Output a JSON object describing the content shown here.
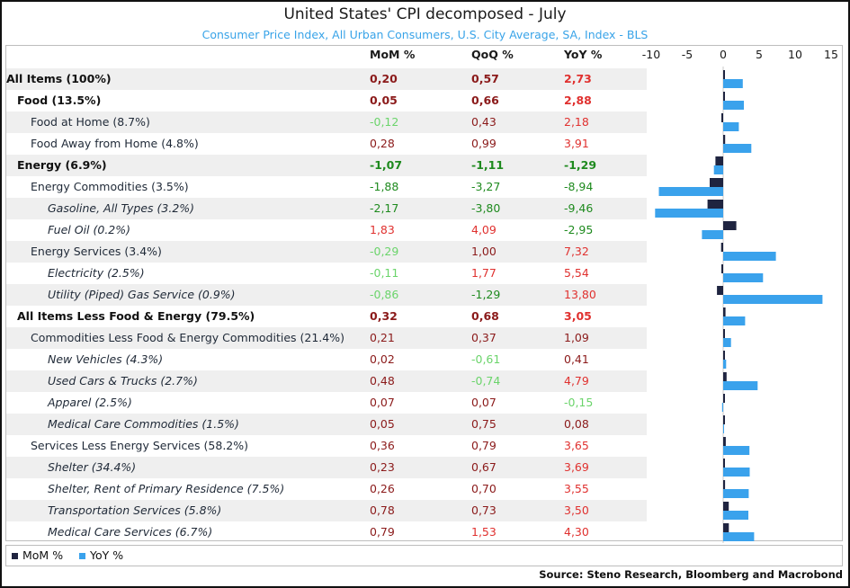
{
  "title": "United States' CPI decomposed - July",
  "subtitle": "Consumer Price Index, All Urban Consumers, U.S. City Average, SA, Index - BLS",
  "columns": {
    "mom": "MoM %",
    "qoq": "QoQ %",
    "yoy": "YoY %"
  },
  "colors": {
    "positive_value": "#8b1a1a",
    "positive_light": "#e0312f",
    "negative_dark": "#1e8a1e",
    "negative_light": "#6bd46b",
    "mom_bar": "#1f2440",
    "yoy_bar": "#3aa2ec",
    "alt_row": "#efefef"
  },
  "legend": {
    "mom": "MoM %",
    "yoy": "YoY %"
  },
  "source": "Source: Steno Research, Bloomberg and Macrobond",
  "rows": [
    {
      "label": "All Items (100%)",
      "level": 0,
      "bold": true,
      "italic": false,
      "mom": "0,20",
      "qoq": "0,57",
      "yoy": "2,73"
    },
    {
      "label": "Food (13.5%)",
      "level": 1,
      "bold": true,
      "italic": false,
      "mom": "0,05",
      "qoq": "0,66",
      "yoy": "2,88"
    },
    {
      "label": "Food at Home (8.7%)",
      "level": 2,
      "bold": false,
      "italic": false,
      "mom": "-0,12",
      "qoq": "0,43",
      "yoy": "2,18"
    },
    {
      "label": "Food Away from Home (4.8%)",
      "level": 2,
      "bold": false,
      "italic": false,
      "mom": "0,28",
      "qoq": "0,99",
      "yoy": "3,91"
    },
    {
      "label": "Energy (6.9%)",
      "level": 1,
      "bold": true,
      "italic": false,
      "mom": "-1,07",
      "qoq": "-1,11",
      "yoy": "-1,29"
    },
    {
      "label": "Energy Commodities (3.5%)",
      "level": 2,
      "bold": false,
      "italic": false,
      "mom": "-1,88",
      "qoq": "-3,27",
      "yoy": "-8,94"
    },
    {
      "label": "Gasoline, All Types (3.2%)",
      "level": 3,
      "bold": false,
      "italic": true,
      "mom": "-2,17",
      "qoq": "-3,80",
      "yoy": "-9,46"
    },
    {
      "label": "Fuel Oil (0.2%)",
      "level": 3,
      "bold": false,
      "italic": true,
      "mom": "1,83",
      "qoq": "4,09",
      "yoy": "-2,95"
    },
    {
      "label": "Energy Services (3.4%)",
      "level": 2,
      "bold": false,
      "italic": false,
      "mom": "-0,29",
      "qoq": "1,00",
      "yoy": "7,32"
    },
    {
      "label": "Electricity (2.5%)",
      "level": 3,
      "bold": false,
      "italic": true,
      "mom": "-0,11",
      "qoq": "1,77",
      "yoy": "5,54"
    },
    {
      "label": "Utility (Piped) Gas Service (0.9%)",
      "level": 3,
      "bold": false,
      "italic": true,
      "mom": "-0,86",
      "qoq": "-1,29",
      "yoy": "13,80"
    },
    {
      "label": "All Items Less Food & Energy (79.5%)",
      "level": 1,
      "bold": true,
      "italic": false,
      "mom": "0,32",
      "qoq": "0,68",
      "yoy": "3,05"
    },
    {
      "label": "Commodities Less Food & Energy Commodities (21.4%)",
      "level": 2,
      "bold": false,
      "italic": false,
      "mom": "0,21",
      "qoq": "0,37",
      "yoy": "1,09"
    },
    {
      "label": "New Vehicles (4.3%)",
      "level": 3,
      "bold": false,
      "italic": true,
      "mom": "0,02",
      "qoq": "-0,61",
      "yoy": "0,41"
    },
    {
      "label": "Used Cars & Trucks (2.7%)",
      "level": 3,
      "bold": false,
      "italic": true,
      "mom": "0,48",
      "qoq": "-0,74",
      "yoy": "4,79"
    },
    {
      "label": "Apparel (2.5%)",
      "level": 3,
      "bold": false,
      "italic": true,
      "mom": "0,07",
      "qoq": "0,07",
      "yoy": "-0,15"
    },
    {
      "label": "Medical Care Commodities (1.5%)",
      "level": 3,
      "bold": false,
      "italic": true,
      "mom": "0,05",
      "qoq": "0,75",
      "yoy": "0,08"
    },
    {
      "label": "Services Less Energy Services (58.2%)",
      "level": 2,
      "bold": false,
      "italic": false,
      "mom": "0,36",
      "qoq": "0,79",
      "yoy": "3,65"
    },
    {
      "label": "Shelter (34.4%)",
      "level": 3,
      "bold": false,
      "italic": true,
      "mom": "0,23",
      "qoq": "0,67",
      "yoy": "3,69"
    },
    {
      "label": "Shelter, Rent of Primary Residence (7.5%)",
      "level": 3,
      "bold": false,
      "italic": true,
      "mom": "0,26",
      "qoq": "0,70",
      "yoy": "3,55"
    },
    {
      "label": "Transportation Services (5.8%)",
      "level": 3,
      "bold": false,
      "italic": true,
      "mom": "0,78",
      "qoq": "0,73",
      "yoy": "3,50"
    },
    {
      "label": "Medical Care Services (6.7%)",
      "level": 3,
      "bold": false,
      "italic": true,
      "mom": "0,79",
      "qoq": "1,53",
      "yoy": "4,30"
    }
  ],
  "chart_data": {
    "type": "bar",
    "orientation": "horizontal",
    "xlim": [
      -11,
      16
    ],
    "xticks": [
      "-10",
      "-5",
      "0",
      "5",
      "10",
      "15"
    ],
    "xtick_values": [
      -10,
      -5,
      0,
      5,
      10,
      15
    ],
    "categories": [
      "All Items (100%)",
      "Food (13.5%)",
      "Food at Home (8.7%)",
      "Food Away from Home (4.8%)",
      "Energy (6.9%)",
      "Energy Commodities (3.5%)",
      "Gasoline, All Types (3.2%)",
      "Fuel Oil (0.2%)",
      "Energy Services (3.4%)",
      "Electricity (2.5%)",
      "Utility (Piped) Gas Service (0.9%)",
      "All Items Less Food & Energy (79.5%)",
      "Commodities Less Food & Energy Commodities (21.4%)",
      "New Vehicles (4.3%)",
      "Used Cars & Trucks (2.7%)",
      "Apparel (2.5%)",
      "Medical Care Commodities (1.5%)",
      "Services Less Energy Services (58.2%)",
      "Shelter (34.4%)",
      "Shelter, Rent of Primary Residence (7.5%)",
      "Transportation Services (5.8%)",
      "Medical Care Services (6.7%)"
    ],
    "series": [
      {
        "name": "MoM %",
        "values": [
          0.2,
          0.05,
          -0.12,
          0.28,
          -1.07,
          -1.88,
          -2.17,
          1.83,
          -0.29,
          -0.11,
          -0.86,
          0.32,
          0.21,
          0.02,
          0.48,
          0.07,
          0.05,
          0.36,
          0.23,
          0.26,
          0.78,
          0.79
        ]
      },
      {
        "name": "YoY %",
        "values": [
          2.73,
          2.88,
          2.18,
          3.91,
          -1.29,
          -8.94,
          -9.46,
          -2.95,
          7.32,
          5.54,
          13.8,
          3.05,
          1.09,
          0.41,
          4.79,
          -0.15,
          0.08,
          3.65,
          3.69,
          3.55,
          3.5,
          4.3
        ]
      }
    ],
    "legend_position": "bottom-left",
    "grid": false
  }
}
